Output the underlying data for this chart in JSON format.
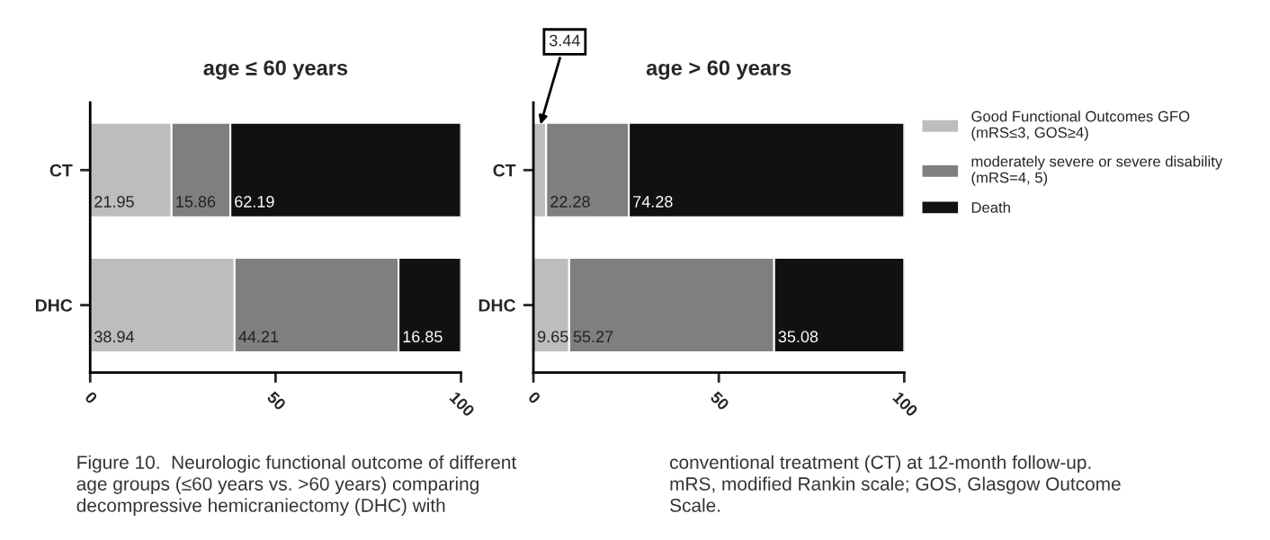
{
  "chart_data": [
    {
      "type": "bar",
      "orientation": "horizontal",
      "stacked": true,
      "title": "age ≤ 60 years",
      "categories": [
        "CT",
        "DHC"
      ],
      "xlim": [
        0,
        100
      ],
      "xticks": [
        0,
        50,
        100
      ],
      "legend": false,
      "series": [
        {
          "color": "#bdbdbd",
          "values": [
            21.95,
            38.94
          ],
          "value_labels": [
            "21.95",
            "38.94"
          ]
        },
        {
          "color": "#7f7f7f",
          "values": [
            15.86,
            44.21
          ],
          "value_labels": [
            "15.86",
            "44.21"
          ]
        },
        {
          "color": "#111111",
          "values": [
            62.19,
            16.85
          ],
          "value_labels": [
            "62.19",
            "16.85"
          ]
        }
      ],
      "annotations": [
        "Figure 10.  Neurologic functional outcome of different\nage groups (≤60 years vs. >60 years) comparing\ndecompressive hemicraniectomy (DHC) with"
      ]
    },
    {
      "type": "bar",
      "orientation": "horizontal",
      "stacked": true,
      "title": "age > 60 years",
      "categories": [
        "CT",
        "DHC"
      ],
      "xlim": [
        0,
        100
      ],
      "xticks": [
        0,
        50,
        100
      ],
      "legend": "right",
      "series": [
        {
          "name": "Good Functional Outcomes GFO\n(mRS≤3, GOS≥4)",
          "color": "#bdbdbd",
          "values": [
            3.44,
            9.65
          ],
          "value_labels": [
            "3.44",
            "9.65"
          ]
        },
        {
          "name": "moderately severe or severe disability\n(mRS=4, 5)",
          "color": "#7f7f7f",
          "values": [
            22.28,
            55.27
          ],
          "value_labels": [
            "22.28",
            "55.27"
          ]
        },
        {
          "name": "Death",
          "color": "#111111",
          "values": [
            74.28,
            35.08
          ],
          "value_labels": [
            "74.28",
            "35.08"
          ]
        }
      ],
      "annotations": [
        "conventional treatment (CT) at 12-month follow-up.\nmRS, modified Rankin scale; GOS, Glasgow Outcome\nScale."
      ]
    }
  ]
}
